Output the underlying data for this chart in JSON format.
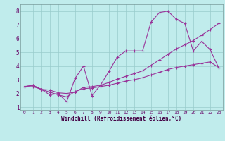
{
  "title": "",
  "xlabel": "Windchill (Refroidissement éolien,°C)",
  "ylabel": "",
  "bg_color": "#c0ecec",
  "line_color": "#993399",
  "xlim": [
    -0.5,
    23.5
  ],
  "ylim": [
    0.8,
    8.5
  ],
  "xticks": [
    0,
    1,
    2,
    3,
    4,
    5,
    6,
    7,
    8,
    9,
    10,
    11,
    12,
    13,
    14,
    15,
    16,
    17,
    18,
    19,
    20,
    21,
    22,
    23
  ],
  "yticks": [
    1,
    2,
    3,
    4,
    5,
    6,
    7,
    8
  ],
  "grid_color": "#99cccc",
  "curve1_x": [
    0,
    1,
    2,
    3,
    4,
    5,
    6,
    7,
    8,
    9,
    10,
    11,
    12,
    13,
    14,
    15,
    16,
    17,
    18,
    19,
    20,
    21,
    22,
    23
  ],
  "curve1_y": [
    2.5,
    2.6,
    2.3,
    1.9,
    2.0,
    1.4,
    3.1,
    4.0,
    1.85,
    2.6,
    3.6,
    4.65,
    5.1,
    5.1,
    5.1,
    7.2,
    7.9,
    8.0,
    7.4,
    7.1,
    5.1,
    5.8,
    5.2,
    3.9
  ],
  "curve2_x": [
    0,
    1,
    2,
    3,
    4,
    5,
    6,
    7,
    8,
    9,
    10,
    11,
    12,
    13,
    14,
    15,
    16,
    17,
    18,
    19,
    20,
    21,
    22,
    23
  ],
  "curve2_y": [
    2.5,
    2.6,
    2.3,
    2.25,
    2.05,
    2.0,
    2.1,
    2.45,
    2.5,
    2.6,
    2.8,
    3.05,
    3.25,
    3.45,
    3.65,
    4.05,
    4.45,
    4.85,
    5.25,
    5.55,
    5.85,
    6.25,
    6.65,
    7.1
  ],
  "curve3_x": [
    0,
    1,
    2,
    3,
    4,
    5,
    6,
    7,
    8,
    9,
    10,
    11,
    12,
    13,
    14,
    15,
    16,
    17,
    18,
    19,
    20,
    21,
    22,
    23
  ],
  "curve3_y": [
    2.5,
    2.5,
    2.3,
    2.1,
    1.9,
    1.75,
    2.15,
    2.35,
    2.4,
    2.5,
    2.6,
    2.75,
    2.9,
    3.0,
    3.15,
    3.35,
    3.55,
    3.75,
    3.9,
    4.0,
    4.1,
    4.2,
    4.3,
    3.9
  ]
}
